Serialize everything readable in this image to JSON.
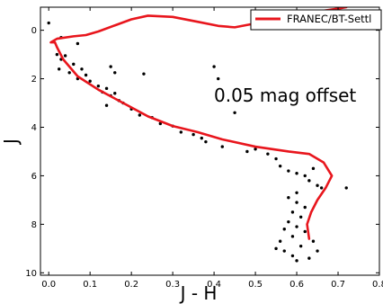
{
  "chart_data": {
    "type": "scatter",
    "xlabel": "J - H",
    "ylabel": "J",
    "xlim": [
      -0.02,
      0.8
    ],
    "ylim": [
      10.1,
      -0.95
    ],
    "y_inverted": true,
    "xticks": [
      0.0,
      0.1,
      0.2,
      0.3,
      0.4,
      0.5,
      0.6,
      0.7,
      0.8
    ],
    "xtick_labels": [
      "0.0",
      "0.1",
      "0.2",
      "0.3",
      "0.4",
      "0.5",
      "0.6",
      "0.7",
      "0.8"
    ],
    "yticks": [
      0,
      2,
      4,
      6,
      8,
      10
    ],
    "ytick_labels": [
      "0",
      "2",
      "4",
      "6",
      "8",
      "10"
    ],
    "annotation": "0.05 mag offset",
    "legend": {
      "placement": "top-right",
      "entries": [
        "FRANEC/BT-Settl"
      ]
    },
    "series": [
      {
        "name": "FRANEC/BT-Settl",
        "kind": "line",
        "color": "#e8161d",
        "points": [
          [
            0.63,
            8.6
          ],
          [
            0.625,
            8.0
          ],
          [
            0.635,
            7.5
          ],
          [
            0.65,
            7.0
          ],
          [
            0.67,
            6.5
          ],
          [
            0.685,
            6.0
          ],
          [
            0.665,
            5.45
          ],
          [
            0.63,
            5.1
          ],
          [
            0.58,
            5.0
          ],
          [
            0.5,
            4.8
          ],
          [
            0.42,
            4.5
          ],
          [
            0.36,
            4.2
          ],
          [
            0.3,
            3.95
          ],
          [
            0.24,
            3.55
          ],
          [
            0.18,
            3.0
          ],
          [
            0.12,
            2.45
          ],
          [
            0.07,
            1.9
          ],
          [
            0.035,
            1.2
          ],
          [
            0.02,
            0.7
          ],
          [
            0.015,
            0.5
          ],
          [
            0.005,
            0.5
          ],
          [
            0.02,
            0.35
          ],
          [
            0.06,
            0.25
          ],
          [
            0.09,
            0.2
          ],
          [
            0.12,
            0.05
          ],
          [
            0.16,
            -0.2
          ],
          [
            0.2,
            -0.45
          ],
          [
            0.24,
            -0.6
          ],
          [
            0.3,
            -0.55
          ],
          [
            0.36,
            -0.35
          ],
          [
            0.41,
            -0.18
          ],
          [
            0.45,
            -0.12
          ],
          [
            0.49,
            -0.25
          ],
          [
            0.53,
            -0.45
          ],
          [
            0.58,
            -0.6
          ],
          [
            0.63,
            -0.72
          ],
          [
            0.68,
            -0.84
          ],
          [
            0.72,
            -0.95
          ]
        ]
      },
      {
        "name": "",
        "kind": "scatter",
        "color": "#000000",
        "points": [
          [
            0.0,
            -0.3
          ],
          [
            0.03,
            0.3
          ],
          [
            0.07,
            0.55
          ],
          [
            0.02,
            1.0
          ],
          [
            0.03,
            1.2
          ],
          [
            0.04,
            1.05
          ],
          [
            0.06,
            1.4
          ],
          [
            0.025,
            1.6
          ],
          [
            0.05,
            1.75
          ],
          [
            0.08,
            1.6
          ],
          [
            0.07,
            2.0
          ],
          [
            0.09,
            1.85
          ],
          [
            0.1,
            2.1
          ],
          [
            0.12,
            2.3
          ],
          [
            0.13,
            2.55
          ],
          [
            0.14,
            2.4
          ],
          [
            0.15,
            2.7
          ],
          [
            0.16,
            2.6
          ],
          [
            0.17,
            2.9
          ],
          [
            0.18,
            3.0
          ],
          [
            0.15,
            1.5
          ],
          [
            0.16,
            1.75
          ],
          [
            0.23,
            1.8
          ],
          [
            0.14,
            3.1
          ],
          [
            0.2,
            3.25
          ],
          [
            0.22,
            3.5
          ],
          [
            0.25,
            3.6
          ],
          [
            0.27,
            3.85
          ],
          [
            0.3,
            3.95
          ],
          [
            0.32,
            4.2
          ],
          [
            0.35,
            4.3
          ],
          [
            0.37,
            4.45
          ],
          [
            0.4,
            1.5
          ],
          [
            0.38,
            4.6
          ],
          [
            0.42,
            4.8
          ],
          [
            0.45,
            3.4
          ],
          [
            0.41,
            2.0
          ],
          [
            0.48,
            5.0
          ],
          [
            0.5,
            4.9
          ],
          [
            0.53,
            5.1
          ],
          [
            0.55,
            5.3
          ],
          [
            0.56,
            5.6
          ],
          [
            0.58,
            5.8
          ],
          [
            0.6,
            5.9
          ],
          [
            0.62,
            6.0
          ],
          [
            0.63,
            6.2
          ],
          [
            0.64,
            5.7
          ],
          [
            0.65,
            6.4
          ],
          [
            0.66,
            6.5
          ],
          [
            0.72,
            6.5
          ],
          [
            0.6,
            6.7
          ],
          [
            0.58,
            6.9
          ],
          [
            0.6,
            7.1
          ],
          [
            0.62,
            7.3
          ],
          [
            0.59,
            7.5
          ],
          [
            0.61,
            7.7
          ],
          [
            0.58,
            7.9
          ],
          [
            0.6,
            8.1
          ],
          [
            0.62,
            8.3
          ],
          [
            0.59,
            8.5
          ],
          [
            0.56,
            8.7
          ],
          [
            0.61,
            8.9
          ],
          [
            0.57,
            9.1
          ],
          [
            0.59,
            9.3
          ],
          [
            0.6,
            9.5
          ],
          [
            0.63,
            9.4
          ],
          [
            0.55,
            9.0
          ],
          [
            0.57,
            8.2
          ],
          [
            0.64,
            8.7
          ],
          [
            0.65,
            9.1
          ]
        ]
      }
    ]
  }
}
